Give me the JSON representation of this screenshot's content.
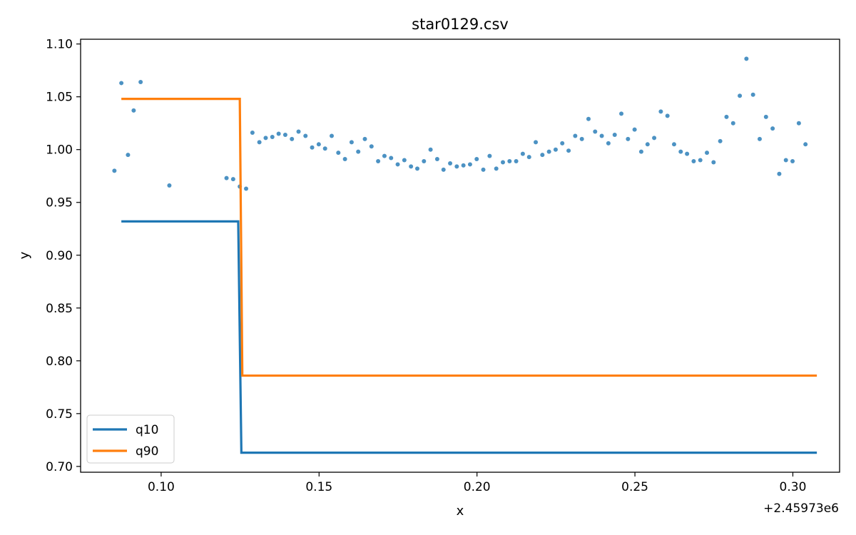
{
  "chart_data": {
    "type": "line",
    "title": "star0129.csv",
    "xlabel": "x",
    "ylabel": "y",
    "x_offset_label": "+2.45973e6",
    "xlim": [
      0.0745,
      0.3148
    ],
    "ylim": [
      0.6945,
      1.1045
    ],
    "x_ticks": [
      {
        "value": 0.1,
        "label": "0.10"
      },
      {
        "value": 0.15,
        "label": "0.15"
      },
      {
        "value": 0.2,
        "label": "0.20"
      },
      {
        "value": 0.25,
        "label": "0.25"
      },
      {
        "value": 0.3,
        "label": "0.30"
      }
    ],
    "y_ticks": [
      {
        "value": 0.7,
        "label": "0.70"
      },
      {
        "value": 0.75,
        "label": "0.75"
      },
      {
        "value": 0.8,
        "label": "0.80"
      },
      {
        "value": 0.85,
        "label": "0.85"
      },
      {
        "value": 0.9,
        "label": "0.90"
      },
      {
        "value": 0.95,
        "label": "0.95"
      },
      {
        "value": 1.0,
        "label": "1.00"
      },
      {
        "value": 1.05,
        "label": "1.05"
      },
      {
        "value": 1.1,
        "label": "1.10"
      }
    ],
    "grid": false,
    "legend_position": "lower-left",
    "scatter": {
      "color": "#1f77b4",
      "points": [
        [
          0.0852,
          0.98
        ],
        [
          0.0874,
          1.063
        ],
        [
          0.0895,
          0.995
        ],
        [
          0.0913,
          1.037
        ],
        [
          0.0935,
          1.064
        ],
        [
          0.1026,
          0.966
        ],
        [
          0.1207,
          0.973
        ],
        [
          0.1228,
          0.972
        ],
        [
          0.1249,
          0.965
        ],
        [
          0.1269,
          0.963
        ],
        [
          0.1289,
          1.016
        ],
        [
          0.1311,
          1.007
        ],
        [
          0.1331,
          1.011
        ],
        [
          0.1352,
          1.012
        ],
        [
          0.1372,
          1.015
        ],
        [
          0.1393,
          1.014
        ],
        [
          0.1414,
          1.01
        ],
        [
          0.1435,
          1.017
        ],
        [
          0.1457,
          1.013
        ],
        [
          0.1478,
          1.002
        ],
        [
          0.1499,
          1.005
        ],
        [
          0.1519,
          1.001
        ],
        [
          0.154,
          1.013
        ],
        [
          0.1561,
          0.997
        ],
        [
          0.1582,
          0.991
        ],
        [
          0.1603,
          1.007
        ],
        [
          0.1624,
          0.998
        ],
        [
          0.1645,
          1.01
        ],
        [
          0.1666,
          1.003
        ],
        [
          0.1687,
          0.989
        ],
        [
          0.1707,
          0.994
        ],
        [
          0.1728,
          0.992
        ],
        [
          0.1749,
          0.986
        ],
        [
          0.177,
          0.99
        ],
        [
          0.1791,
          0.984
        ],
        [
          0.1811,
          0.982
        ],
        [
          0.1832,
          0.989
        ],
        [
          0.1853,
          1.0
        ],
        [
          0.1874,
          0.991
        ],
        [
          0.1894,
          0.981
        ],
        [
          0.1915,
          0.987
        ],
        [
          0.1936,
          0.984
        ],
        [
          0.1957,
          0.985
        ],
        [
          0.1978,
          0.986
        ],
        [
          0.1999,
          0.991
        ],
        [
          0.202,
          0.981
        ],
        [
          0.204,
          0.994
        ],
        [
          0.2061,
          0.982
        ],
        [
          0.2082,
          0.988
        ],
        [
          0.2103,
          0.989
        ],
        [
          0.2124,
          0.989
        ],
        [
          0.2145,
          0.996
        ],
        [
          0.2165,
          0.993
        ],
        [
          0.2186,
          1.007
        ],
        [
          0.2207,
          0.995
        ],
        [
          0.2228,
          0.998
        ],
        [
          0.2249,
          1.0
        ],
        [
          0.227,
          1.006
        ],
        [
          0.229,
          0.999
        ],
        [
          0.2311,
          1.013
        ],
        [
          0.2332,
          1.01
        ],
        [
          0.2353,
          1.029
        ],
        [
          0.2374,
          1.017
        ],
        [
          0.2395,
          1.013
        ],
        [
          0.2416,
          1.006
        ],
        [
          0.2436,
          1.014
        ],
        [
          0.2457,
          1.034
        ],
        [
          0.2478,
          1.01
        ],
        [
          0.2499,
          1.019
        ],
        [
          0.252,
          0.998
        ],
        [
          0.254,
          1.005
        ],
        [
          0.2561,
          1.011
        ],
        [
          0.2582,
          1.036
        ],
        [
          0.2603,
          1.032
        ],
        [
          0.2624,
          1.005
        ],
        [
          0.2645,
          0.998
        ],
        [
          0.2665,
          0.996
        ],
        [
          0.2686,
          0.989
        ],
        [
          0.2707,
          0.99
        ],
        [
          0.2728,
          0.997
        ],
        [
          0.2749,
          0.988
        ],
        [
          0.277,
          1.008
        ],
        [
          0.279,
          1.031
        ],
        [
          0.2811,
          1.025
        ],
        [
          0.2832,
          1.051
        ],
        [
          0.2853,
          1.086
        ],
        [
          0.2874,
          1.052
        ],
        [
          0.2895,
          1.01
        ],
        [
          0.2915,
          1.031
        ],
        [
          0.2936,
          1.02
        ],
        [
          0.2957,
          0.977
        ],
        [
          0.2978,
          0.99
        ],
        [
          0.2999,
          0.989
        ],
        [
          0.3019,
          1.025
        ],
        [
          0.304,
          1.005
        ]
      ]
    },
    "series": [
      {
        "name": "q10",
        "color": "#1f77b4",
        "x": [
          0.0874,
          0.1244,
          0.1254,
          0.3076
        ],
        "y": [
          0.932,
          0.932,
          0.713,
          0.713
        ]
      },
      {
        "name": "q90",
        "color": "#ff7f0e",
        "x": [
          0.0874,
          0.1249,
          0.1257,
          0.3076
        ],
        "y": [
          1.048,
          1.048,
          0.786,
          0.786
        ]
      }
    ]
  }
}
